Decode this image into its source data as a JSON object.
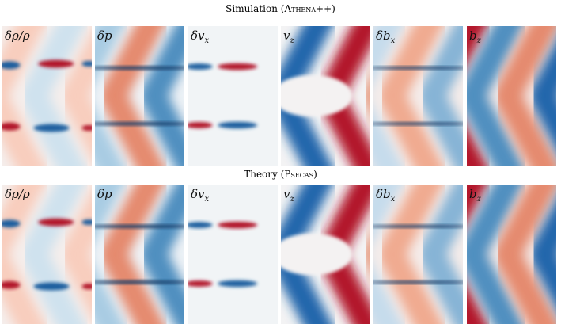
{
  "rows": [
    {
      "title_parts": [
        "Simulation (",
        "Athena++",
        ")"
      ],
      "panels": [
        {
          "label": "δρ/ρ"
        },
        {
          "label": "δp"
        },
        {
          "label": "δv",
          "sub": "x"
        },
        {
          "label": "v",
          "sub": "z"
        },
        {
          "label": "δb",
          "sub": "x"
        },
        {
          "label": "b",
          "sub": "z"
        }
      ]
    },
    {
      "title_parts": [
        "Theory (",
        "Psecas",
        ")"
      ],
      "panels": [
        {
          "label": "δρ/ρ"
        },
        {
          "label": "δp"
        },
        {
          "label": "δv",
          "sub": "x"
        },
        {
          "label": "v",
          "sub": "z"
        },
        {
          "label": "δb",
          "sub": "x"
        },
        {
          "label": "b",
          "sub": "z"
        }
      ]
    }
  ]
}
